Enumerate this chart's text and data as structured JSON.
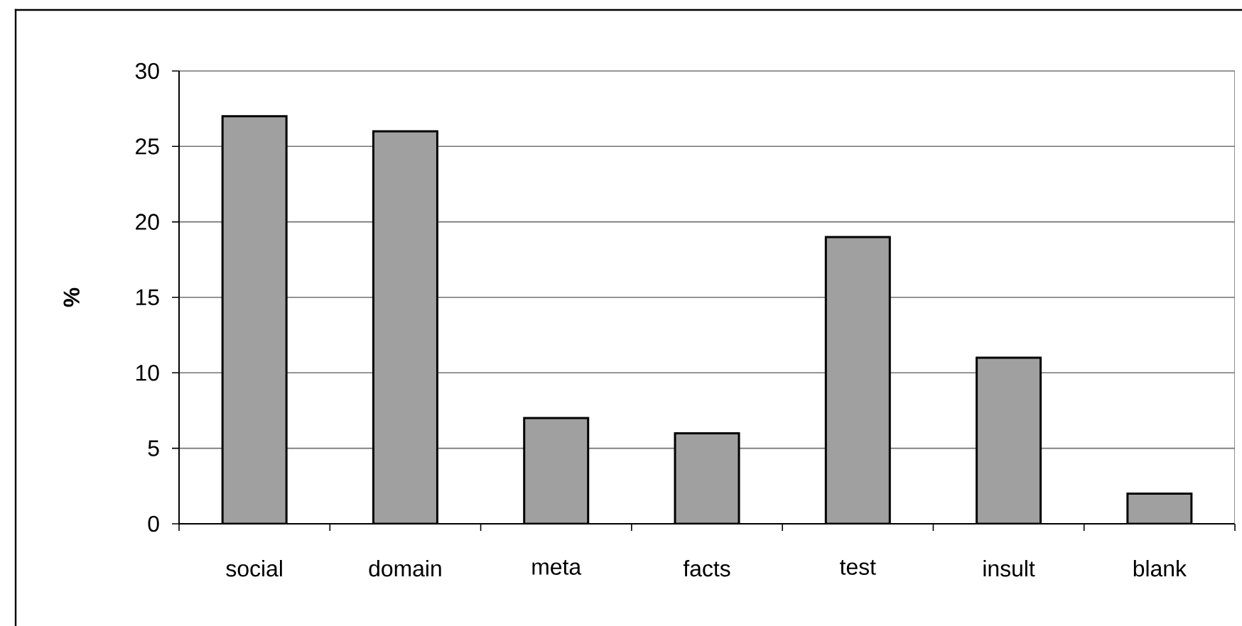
{
  "chart_data": {
    "type": "bar",
    "categories": [
      "social",
      "domain",
      "meta",
      "facts",
      "test",
      "insult",
      "blank"
    ],
    "values": [
      27,
      26,
      7,
      6,
      19,
      11,
      2
    ],
    "color": "#a0a0a0",
    "ylabel": "%",
    "ylim": [
      0,
      30
    ],
    "yticks": [
      0,
      5,
      10,
      15,
      20,
      25,
      30
    ],
    "grid": "y"
  }
}
